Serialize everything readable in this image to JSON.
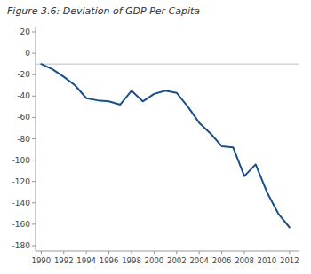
{
  "chart_data": {
    "type": "line",
    "title": "Figure 3.6: Deviation of GDP Per Capita",
    "x": [
      1990,
      1991,
      1992,
      1993,
      1994,
      1995,
      1996,
      1997,
      1998,
      1999,
      2000,
      2001,
      2002,
      2003,
      2004,
      2005,
      2006,
      2007,
      2008,
      2009,
      2010,
      2011,
      2012
    ],
    "values": [
      -10,
      -15,
      -22,
      -30,
      -42,
      -44,
      -45,
      -48,
      -35,
      -45,
      -38,
      -35,
      -37,
      -50,
      -65,
      -75,
      -87,
      -88,
      -115,
      -104,
      -130,
      -150,
      -163
    ],
    "color": "#1a4f8a",
    "xlim": [
      1989.5,
      2012.8
    ],
    "ylim": [
      -185,
      25
    ],
    "xticks": [
      1990,
      1992,
      1994,
      1996,
      1998,
      2000,
      2002,
      2004,
      2006,
      2008,
      2010,
      2012
    ],
    "yticks": [
      20,
      0,
      -20,
      -40,
      -60,
      -80,
      -100,
      -120,
      -140,
      -160,
      -180
    ],
    "reference_lines": [
      {
        "y": -10,
        "color": "#c0c0c0"
      }
    ],
    "grid": false
  }
}
